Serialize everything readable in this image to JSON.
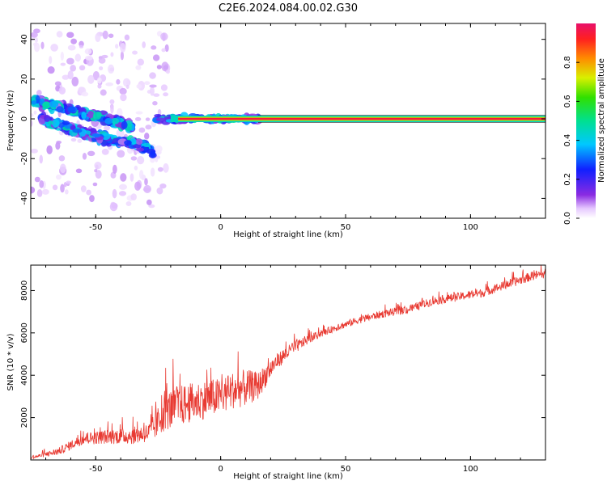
{
  "title": "C2E6.2024.084.00.02.G30",
  "chart_data": [
    {
      "type": "heatmap",
      "xlabel": "Height of straight line (km)",
      "ylabel": "Frequency (Hz)",
      "xlim": [
        -76,
        130
      ],
      "ylim": [
        -50,
        48
      ],
      "xticks": [
        -50,
        0,
        50,
        100
      ],
      "yticks": [
        -40,
        -20,
        0,
        20,
        40
      ],
      "colorbar": {
        "label": "Normalized spectral amplitude",
        "range": [
          0,
          1
        ],
        "ticks": [
          "0.0",
          "0.2",
          "0.4",
          "0.6",
          "0.8"
        ],
        "colormap": "rainbow"
      },
      "features": [
        {
          "name": "steady-line",
          "x_start": -17,
          "x_end": 130,
          "frequency": 0,
          "amplitude": 0.95
        },
        {
          "name": "mixed-segment",
          "x_start": -26,
          "x_end": 15,
          "frequency": 0,
          "amplitude": 0.6
        },
        {
          "name": "upper-branch",
          "points": [
            [
              -75,
              9
            ],
            [
              -65,
              6
            ],
            [
              -55,
              3
            ],
            [
              -45,
              0
            ],
            [
              -35,
              -4
            ]
          ],
          "amplitude": 0.45
        },
        {
          "name": "lower-branch",
          "points": [
            [
              -72,
              0
            ],
            [
              -60,
              -5
            ],
            [
              -50,
              -9
            ],
            [
              -40,
              -11
            ],
            [
              -30,
              -14
            ],
            [
              -27,
              -16
            ]
          ],
          "amplitude": 0.45
        }
      ]
    },
    {
      "type": "line",
      "xlabel": "Height of straight line (km)",
      "ylabel": "SNR (10 * v/v)",
      "xlim": [
        -76,
        130
      ],
      "ylim": [
        0,
        9200
      ],
      "xticks": [
        -50,
        0,
        50,
        100
      ],
      "yticks": [
        2000,
        4000,
        6000,
        8000
      ],
      "color": "#e83a32",
      "series": [
        {
          "trend": [
            [
              -76,
              100
            ],
            [
              -65,
              400
            ],
            [
              -55,
              1000
            ],
            [
              -45,
              1100
            ],
            [
              -35,
              1150
            ],
            [
              -28,
              1300
            ],
            [
              -22,
              2300
            ],
            [
              -15,
              2600
            ],
            [
              -5,
              2900
            ],
            [
              0,
              3000
            ],
            [
              5,
              3300
            ],
            [
              10,
              3400
            ],
            [
              15,
              3500
            ],
            [
              18,
              4000
            ],
            [
              22,
              4600
            ],
            [
              27,
              5100
            ],
            [
              35,
              5700
            ],
            [
              45,
              6200
            ],
            [
              55,
              6600
            ],
            [
              65,
              6900
            ],
            [
              75,
              7100
            ],
            [
              85,
              7500
            ],
            [
              95,
              7700
            ],
            [
              105,
              7900
            ],
            [
              115,
              8300
            ],
            [
              125,
              8700
            ],
            [
              130,
              8800
            ]
          ],
          "spread": [
            [
              -76,
              100
            ],
            [
              -55,
              500
            ],
            [
              -30,
              800
            ],
            [
              -20,
              1800
            ],
            [
              0,
              1600
            ],
            [
              10,
              1600
            ],
            [
              15,
              1200
            ],
            [
              22,
              700
            ],
            [
              40,
              300
            ],
            [
              80,
              350
            ],
            [
              130,
              400
            ]
          ]
        }
      ]
    }
  ]
}
